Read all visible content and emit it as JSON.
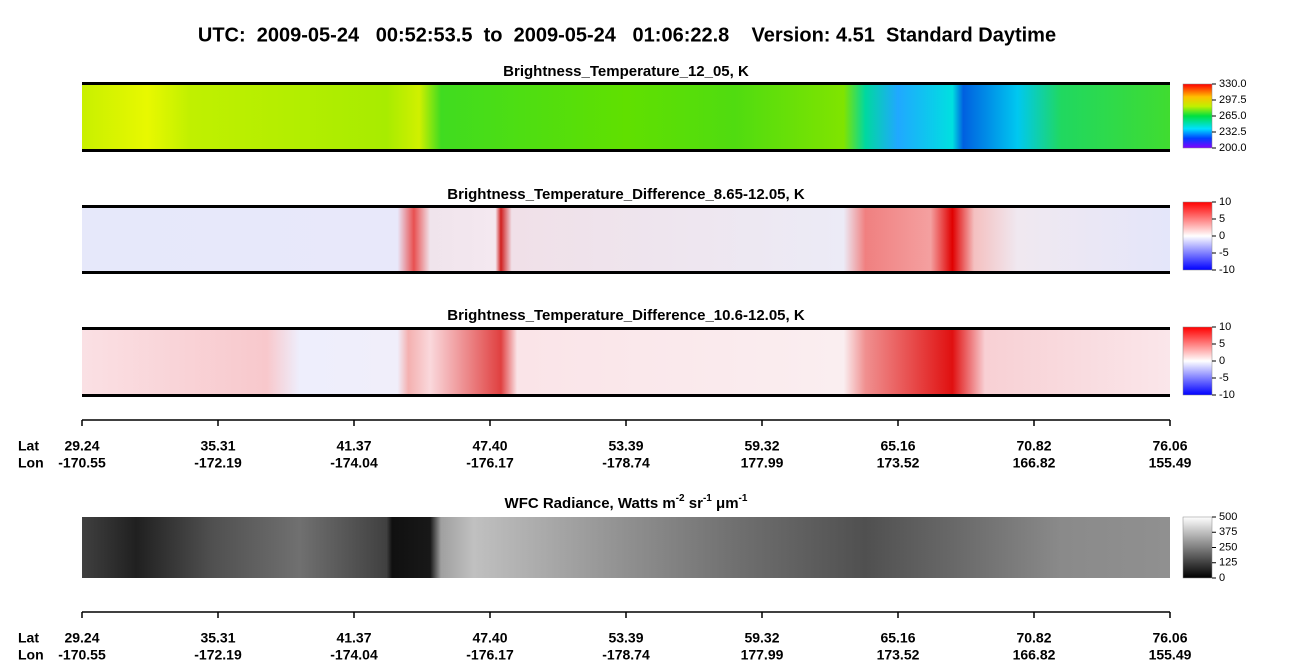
{
  "title": "UTC:  2009-05-24   00:52:53.5  to  2009-05-24   01:06:22.8    Version: 4.51  Standard Daytime",
  "panels": [
    {
      "title": [
        {
          "text": "Brightness_Temperature_12_05, K"
        }
      ],
      "colorbar": [
        "330.0",
        "297.5",
        "265.0",
        "232.5",
        "200.0"
      ]
    },
    {
      "title": [
        {
          "text": "Brightness_Temperature_Difference_8.65-12.05, K"
        }
      ],
      "colorbar": [
        "10",
        "5",
        "0",
        "-5",
        "-10"
      ]
    },
    {
      "title": [
        {
          "text": "Brightness_Temperature_Difference_10.6-12.05, K"
        }
      ],
      "colorbar": [
        "10",
        "5",
        "0",
        "-5",
        "-10"
      ]
    },
    {
      "title": [
        {
          "text": "WFC Radiance, Watts m"
        },
        {
          "text": "-2",
          "sup": true
        },
        {
          "text": " sr"
        },
        {
          "text": "-1",
          "sup": true
        },
        {
          "text": " μ"
        },
        {
          "text": "m"
        },
        {
          "text": "-1",
          "sup": true
        }
      ],
      "colorbar": [
        "500",
        "375",
        "250",
        "125",
        "0"
      ]
    }
  ],
  "axes": [
    {
      "lat_label": "Lat",
      "lon_label": "Lon",
      "lat": [
        "29.24",
        "35.31",
        "41.37",
        "47.40",
        "53.39",
        "59.32",
        "65.16",
        "70.82",
        "76.06"
      ],
      "lon": [
        "-170.55",
        "-172.19",
        "-174.04",
        "-176.17",
        "-178.74",
        "177.99",
        "173.52",
        "166.82",
        "155.49"
      ]
    },
    {
      "lat_label": "Lat",
      "lon_label": "Lon",
      "lat": [
        "29.24",
        "35.31",
        "41.37",
        "47.40",
        "53.39",
        "59.32",
        "65.16",
        "70.82",
        "76.06"
      ],
      "lon": [
        "-170.55",
        "-172.19",
        "-174.04",
        "-176.17",
        "-178.74",
        "177.99",
        "173.52",
        "166.82",
        "155.49"
      ]
    }
  ]
}
